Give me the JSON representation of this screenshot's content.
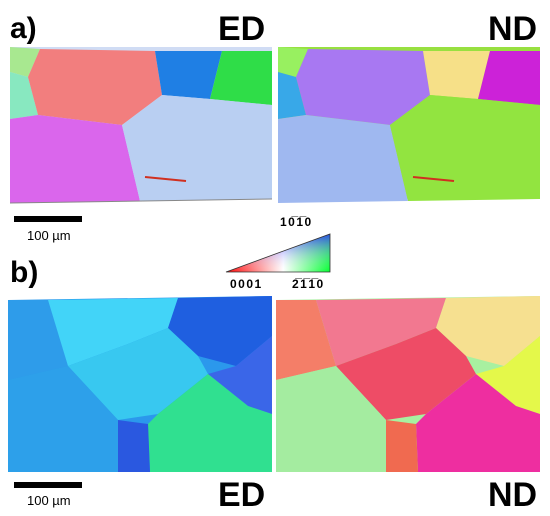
{
  "figure": {
    "panel_a": {
      "label": "a)",
      "maps": [
        {
          "direction": "ED"
        },
        {
          "direction": "ND"
        }
      ],
      "scale_bar": "100 µm"
    },
    "panel_b": {
      "label": "b)",
      "maps": [
        {
          "direction": "ED"
        },
        {
          "direction": "ND"
        }
      ],
      "scale_bar": "100 µm"
    },
    "color_key": {
      "top": "10̅1̅0",
      "bottom_left": "0001",
      "bottom_right": "2̅1̅1̅0"
    },
    "colors": {
      "red": "#f07878",
      "blue": "#1a7fe0",
      "green": "#2fd84a",
      "magenta": "#d868e8",
      "lightblue": "#b8cdf0",
      "violet": "#a070f0",
      "yellow": "#f4de88",
      "lime": "#90e840",
      "cyan": "#40d8f0",
      "pink": "#f060b0"
    }
  }
}
